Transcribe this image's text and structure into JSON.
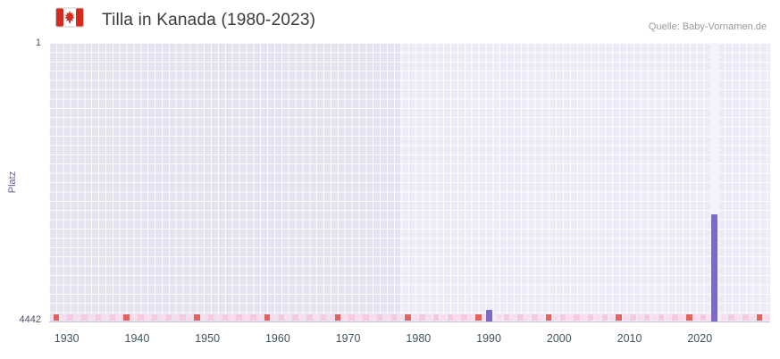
{
  "header": {
    "title": "Tilla in Kanada (1980-2023)",
    "source": "Quelle: Baby-Vornamen.de"
  },
  "chart_data": {
    "type": "bar",
    "title": "Tilla in Kanada (1980-2023)",
    "xlabel": "",
    "ylabel": "Platz",
    "y_axis": {
      "min": 1,
      "max": 4442,
      "inverted": true,
      "top_label": "1",
      "bottom_label": "4442"
    },
    "x_range": [
      1927.5,
      2030
    ],
    "x_ticks": [
      1930,
      1940,
      1950,
      1960,
      1970,
      1980,
      1990,
      2000,
      2010,
      2020
    ],
    "bars": [
      {
        "year": 1990,
        "rank": 4257
      },
      {
        "year": 2022,
        "rank": 2734
      }
    ],
    "unranked_strong_years": [
      1928,
      1938,
      1948,
      1958,
      1968,
      1978,
      1988,
      1998,
      2008,
      2018,
      2028
    ],
    "unranked_range": [
      1928,
      2029
    ],
    "shaded_region_end_year": 1977.5,
    "highlight_year": 2022,
    "grid": true,
    "legend_position": "none",
    "colors": {
      "bar": "#7d6ac1",
      "strong_marker": "#e2625f",
      "pale_marker_a": "#fbdcec",
      "pale_marker_b": "#f6cade",
      "region_left": "#e6e3f1",
      "region_right": "#edebf7",
      "highlight": "#f5f3fb",
      "grid": "#ffffff",
      "accent_text": "#6b5ca5"
    }
  }
}
